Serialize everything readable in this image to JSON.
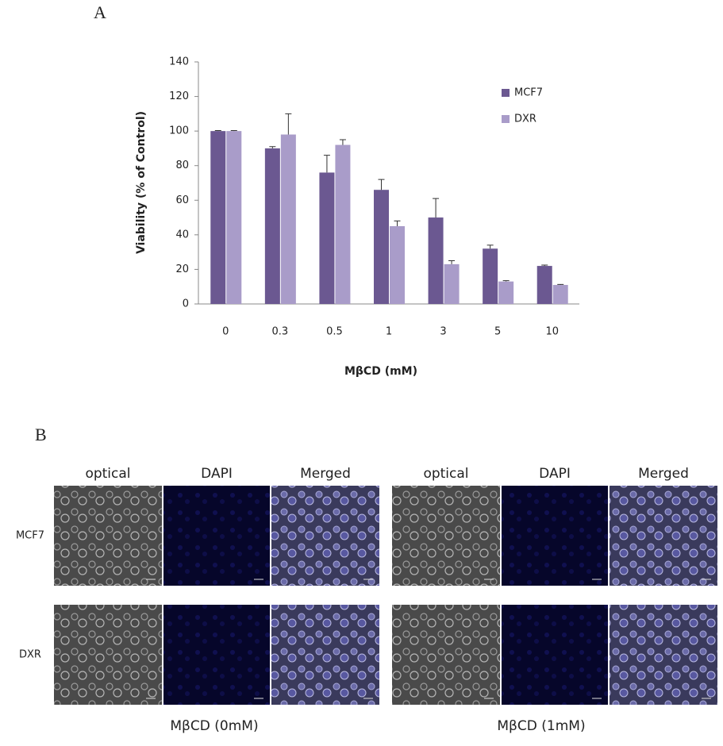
{
  "panels": {
    "a_label": "A",
    "b_label": "B"
  },
  "chart_data": {
    "type": "bar",
    "x_label": "MβCD (mM)",
    "y_label": "Viability  (% of Control)",
    "categories": [
      "0",
      "0.3",
      "0.5",
      "1",
      "3",
      "5",
      "10"
    ],
    "series": [
      {
        "name": "MCF7",
        "color": "#6b5891",
        "values": [
          100,
          90,
          76,
          66,
          50,
          32,
          22
        ],
        "errors": [
          0.3,
          1,
          10,
          6,
          11,
          2,
          0.5
        ]
      },
      {
        "name": "DXR",
        "color": "#a99cc9",
        "values": [
          100,
          98,
          92,
          45,
          23,
          13,
          11
        ],
        "errors": [
          0.3,
          12,
          3,
          3,
          2,
          0.5,
          0.3
        ]
      }
    ],
    "ylim": [
      0,
      140
    ],
    "yticks": [
      0,
      20,
      40,
      60,
      80,
      100,
      120,
      140
    ],
    "grid": false,
    "legend": "upper right"
  },
  "microscopy": {
    "column_headers": [
      "optical",
      "DAPI",
      "Merged"
    ],
    "row_labels": [
      "MCF7",
      "DXR"
    ],
    "conditions": [
      "MβCD (0mM)",
      "MβCD (1mM)"
    ]
  }
}
